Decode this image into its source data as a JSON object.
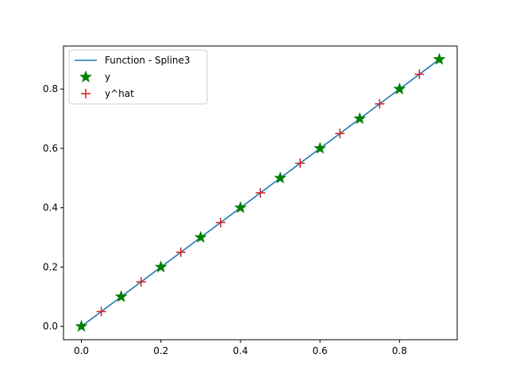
{
  "chart_data": {
    "type": "line",
    "title": "",
    "xlabel": "",
    "ylabel": "",
    "xlim": [
      -0.045,
      0.945
    ],
    "ylim": [
      -0.045,
      0.945
    ],
    "xticks": [
      0.0,
      0.2,
      0.4,
      0.6,
      0.8
    ],
    "xtick_labels": [
      "0.0",
      "0.2",
      "0.4",
      "0.6",
      "0.8"
    ],
    "yticks": [
      0.0,
      0.2,
      0.4,
      0.6,
      0.8
    ],
    "ytick_labels": [
      "0.0",
      "0.2",
      "0.4",
      "0.6",
      "0.8"
    ],
    "grid": false,
    "legend_position": "top-left",
    "series": [
      {
        "name": "Function - Spline3",
        "kind": "line",
        "color": "#1f77b4",
        "x": [
          0.0,
          0.9
        ],
        "y": [
          0.0,
          0.9
        ]
      },
      {
        "name": "y",
        "kind": "scatter",
        "marker": "star",
        "color": "#008000",
        "x": [
          0.0,
          0.1,
          0.2,
          0.3,
          0.4,
          0.5,
          0.6,
          0.7,
          0.8,
          0.9
        ],
        "y": [
          0.0,
          0.1,
          0.2,
          0.3,
          0.4,
          0.5,
          0.6,
          0.7,
          0.8,
          0.9
        ]
      },
      {
        "name": "y^hat",
        "kind": "scatter",
        "marker": "plus",
        "color": "#d62728",
        "x": [
          0.05,
          0.15,
          0.25,
          0.35,
          0.45,
          0.55,
          0.65,
          0.75,
          0.85
        ],
        "y": [
          0.05,
          0.15,
          0.25,
          0.35,
          0.45,
          0.55,
          0.65,
          0.75,
          0.85
        ]
      }
    ]
  }
}
